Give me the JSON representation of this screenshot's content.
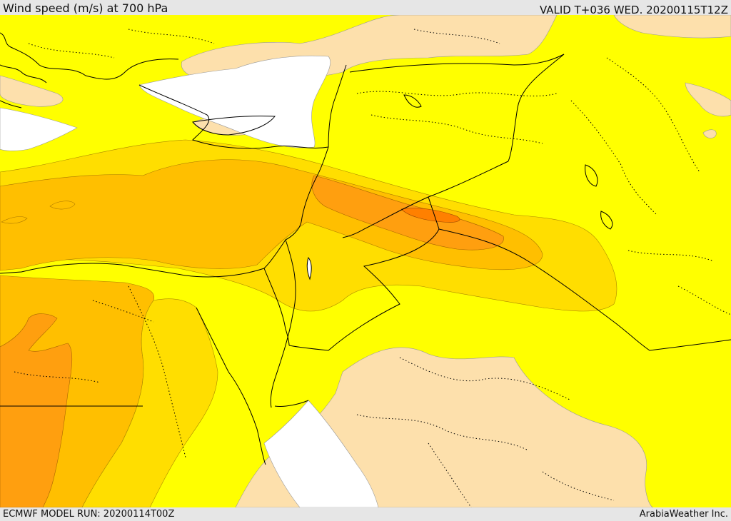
{
  "header": {
    "title": "Wind speed (m/s) at 700 hPa",
    "valid": "VALID T+036 WED. 20200115T12Z"
  },
  "footer": {
    "model_run": "ECMWF MODEL RUN: 20200114T00Z",
    "credit": "ArabiaWeather Inc."
  },
  "colors": {
    "calm": "#ffffff",
    "light": "#fde0ac",
    "moderate": "#ffff00",
    "fresh": "#ffde00",
    "strong": "#ffbf00",
    "very_strong": "#ff9f0f",
    "peak": "#ff8000",
    "land_border": "#000000",
    "sea": "#ffffff"
  }
}
